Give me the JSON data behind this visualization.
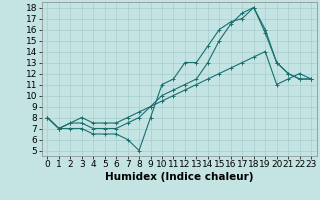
{
  "xlabel": "Humidex (Indice chaleur)",
  "xlim": [
    -0.5,
    23.5
  ],
  "ylim": [
    4.5,
    18.5
  ],
  "xticks": [
    0,
    1,
    2,
    3,
    4,
    5,
    6,
    7,
    8,
    9,
    10,
    11,
    12,
    13,
    14,
    15,
    16,
    17,
    18,
    19,
    20,
    21,
    22,
    23
  ],
  "yticks": [
    5,
    6,
    7,
    8,
    9,
    10,
    11,
    12,
    13,
    14,
    15,
    16,
    17,
    18
  ],
  "bg_color": "#c4e4e4",
  "line_color": "#1a6e6e",
  "grid_color": "#a8cccc",
  "lines": [
    {
      "x": [
        0,
        1,
        2,
        3,
        4,
        5,
        6,
        7,
        8,
        9,
        10,
        11,
        12,
        13,
        14,
        15,
        16,
        17,
        18,
        19,
        20,
        21,
        22,
        23
      ],
      "y": [
        8,
        7,
        7,
        7,
        6.5,
        6.5,
        6.5,
        6,
        5,
        8,
        11,
        11.5,
        13,
        13,
        14.5,
        16,
        16.7,
        17,
        18,
        16,
        13,
        12,
        11.5,
        11.5
      ]
    },
    {
      "x": [
        0,
        1,
        2,
        3,
        4,
        5,
        6,
        7,
        8,
        9,
        10,
        11,
        12,
        13,
        14,
        15,
        16,
        17,
        18,
        19,
        20,
        21,
        22,
        23
      ],
      "y": [
        8,
        7,
        7.5,
        7.5,
        7,
        7,
        7,
        7.5,
        8,
        9,
        10,
        10.5,
        11,
        11.5,
        13,
        15,
        16.5,
        17.5,
        18,
        15.7,
        13,
        12,
        11.5,
        11.5
      ]
    },
    {
      "x": [
        0,
        1,
        2,
        3,
        4,
        5,
        6,
        7,
        8,
        9,
        10,
        11,
        12,
        13,
        14,
        15,
        16,
        17,
        18,
        19,
        20,
        21,
        22,
        23
      ],
      "y": [
        8,
        7,
        7.5,
        8,
        7.5,
        7.5,
        7.5,
        8,
        8.5,
        9,
        9.5,
        10,
        10.5,
        11,
        11.5,
        12,
        12.5,
        13,
        13.5,
        14,
        11,
        11.5,
        12,
        11.5
      ]
    }
  ],
  "marker": "+",
  "markersize": 3,
  "linewidth": 0.8,
  "tick_fontsize": 6.5,
  "xlabel_fontsize": 7.5
}
